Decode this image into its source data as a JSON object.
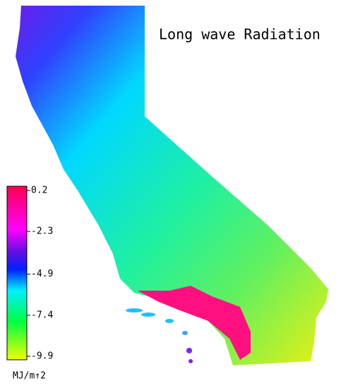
{
  "title": "Long wave Radiation",
  "colorbar": {
    "range": [
      -9.9,
      0.2
    ],
    "ticks": [
      0.2,
      -2.3,
      -4.9,
      -7.4,
      -9.9
    ],
    "unit": "MJ/m↑2"
  }
}
